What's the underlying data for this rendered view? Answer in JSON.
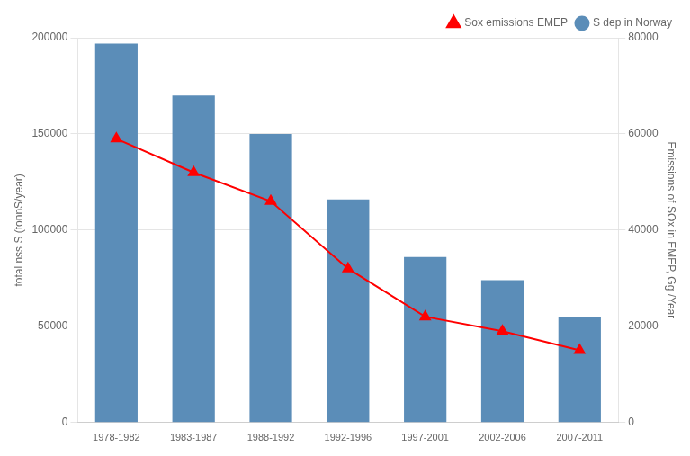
{
  "chart_data": {
    "type": "bar",
    "categories": [
      "1978-1982",
      "1983-1987",
      "1988-1992",
      "1992-1996",
      "1997-2001",
      "2002-2006",
      "2007-2011"
    ],
    "series": [
      {
        "name": "S dep in Norway",
        "type": "bar",
        "color": "#5b8db8",
        "values": [
          197000,
          170000,
          150000,
          116000,
          86000,
          74000,
          55000
        ]
      },
      {
        "name": "Sox emissions EMEP",
        "type": "line",
        "color": "#ff0000",
        "marker": "triangle",
        "axis": "y2",
        "values": [
          59000,
          52000,
          46000,
          32000,
          22000,
          19000,
          15000
        ]
      }
    ],
    "ylabel": "total nss S (tonnS/year)",
    "y2label": "Emissions of SOx in EMEP, Gg /Year",
    "ylim": [
      0,
      200000
    ],
    "yticks": [
      0,
      50000,
      100000,
      150000,
      200000
    ],
    "y2lim": [
      0,
      80000
    ],
    "y2ticks": [
      0,
      20000,
      40000,
      60000,
      80000
    ],
    "grid": true,
    "legend": "upper right"
  }
}
